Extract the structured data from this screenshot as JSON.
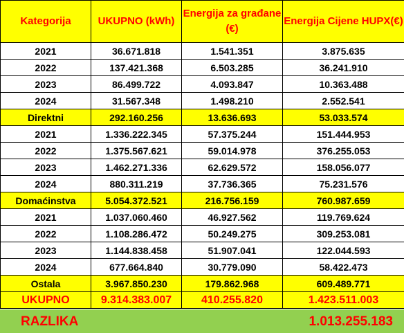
{
  "table": {
    "header": [
      "Kategorija",
      "UKUPNO (kWh)",
      "Energija za građane (€)",
      "Energija Cijene HUPX(€)"
    ],
    "rows": [
      [
        "2021",
        "36.671.818",
        "1.541.351",
        "3.875.635"
      ],
      [
        "2022",
        "137.421.368",
        "6.503.285",
        "36.241.910"
      ],
      [
        "2023",
        "86.499.722",
        "4.093.847",
        "10.363.488"
      ],
      [
        "2024",
        "31.567.348",
        "1.498.210",
        "2.552.541"
      ],
      [
        "Direktni",
        "292.160.256",
        "13.636.693",
        "53.033.574"
      ],
      [
        "2021",
        "1.336.222.345",
        "57.375.244",
        "151.444.953"
      ],
      [
        "2022",
        "1.375.567.621",
        "59.014.978",
        "376.255.053"
      ],
      [
        "2023",
        "1.462.271.336",
        "62.629.572",
        "158.056.077"
      ],
      [
        "2024",
        "880.311.219",
        "37.736.365",
        "75.231.576"
      ],
      [
        "Domaćinstva",
        "5.054.372.521",
        "216.756.159",
        "760.987.659"
      ],
      [
        "2021",
        "1.037.060.460",
        "46.927.562",
        "119.769.624"
      ],
      [
        "2022",
        "1.108.286.472",
        "50.249.275",
        "309.253.081"
      ],
      [
        "2023",
        "1.144.838.458",
        "51.907.041",
        "122.044.593"
      ],
      [
        "2024",
        "677.664.840",
        "30.779.090",
        "58.422.473"
      ],
      [
        "Ostala",
        "3.967.850.230",
        "179.862.968",
        "609.489.771"
      ],
      [
        "UKUPNO",
        "9.314.383.007",
        "410.255.820",
        "1.423.511.003"
      ]
    ],
    "razlika": {
      "label": "RAZLIKA",
      "value": "1.013.255.183"
    }
  }
}
